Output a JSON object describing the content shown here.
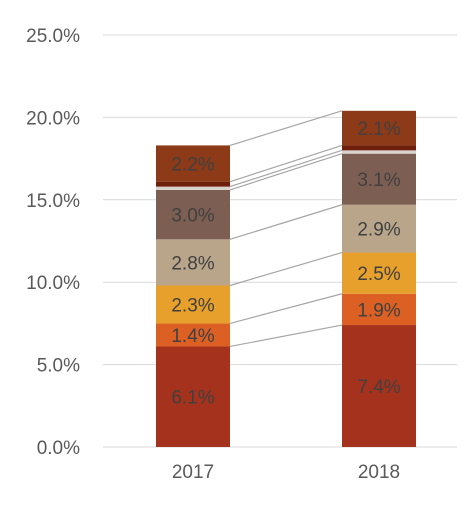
{
  "chart_data": {
    "type": "bar",
    "stacked": true,
    "categories": [
      "2017",
      "2018"
    ],
    "series": [
      {
        "values": [
          6.1,
          7.4
        ],
        "labels": [
          "6.1%",
          "7.4%"
        ],
        "color": "#a5321d"
      },
      {
        "values": [
          1.4,
          1.9
        ],
        "labels": [
          "1.4%",
          "1.9%"
        ],
        "color": "#dc5f24"
      },
      {
        "values": [
          2.3,
          2.5
        ],
        "labels": [
          "2.3%",
          "2.5%"
        ],
        "color": "#e8a02c"
      },
      {
        "values": [
          2.8,
          2.9
        ],
        "labels": [
          "2.8%",
          "2.9%"
        ],
        "color": "#b8a58a"
      },
      {
        "values": [
          3.0,
          3.1
        ],
        "labels": [
          "3.0%",
          "3.1%"
        ],
        "color": "#7c5f52"
      },
      {
        "values": [
          0.2,
          0.2
        ],
        "labels": [
          "",
          ""
        ],
        "color": "#d9d2cc"
      },
      {
        "values": [
          0.3,
          0.3
        ],
        "labels": [
          "",
          ""
        ],
        "color": "#6d1f0c"
      },
      {
        "values": [
          2.2,
          2.1
        ],
        "labels": [
          "2.2%",
          "2.1%"
        ],
        "color": "#8c3a17"
      }
    ],
    "yticks": [
      "0.0%",
      "5.0%",
      "10.0%",
      "15.0%",
      "20.0%",
      "25.0%"
    ],
    "ylim": [
      0,
      25
    ],
    "grid": true,
    "series_lines": true
  }
}
